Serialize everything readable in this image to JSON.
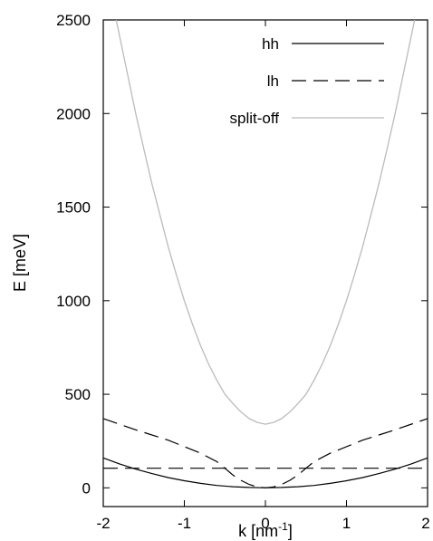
{
  "chart_data": {
    "type": "line",
    "title": "",
    "xlabel": "k [nm",
    "xlabel_sup": "-1",
    "xlabel_end": "]",
    "ylabel": "E [meV]",
    "xlim": [
      -2,
      2
    ],
    "ylim": [
      -100,
      2500
    ],
    "xticks": [
      -2,
      -1,
      0,
      1,
      2
    ],
    "yticks": [
      0,
      500,
      1000,
      1500,
      2000,
      2500
    ],
    "grid": false,
    "legend_position": "top-right",
    "series": [
      {
        "name": "hh",
        "style": "solid",
        "color": "#000000",
        "points": [
          [
            -2.0,
            0
          ],
          [
            -1.8,
            0
          ],
          [
            -1.6,
            0
          ],
          [
            -1.4,
            0
          ],
          [
            -1.2,
            0
          ],
          [
            -1.0,
            0
          ],
          [
            -0.8,
            0
          ],
          [
            -0.6,
            0
          ],
          [
            -0.4,
            0
          ],
          [
            -0.2,
            0
          ],
          [
            0.0,
            0
          ],
          [
            0.2,
            0
          ],
          [
            0.4,
            0
          ],
          [
            0.6,
            0
          ],
          [
            0.8,
            0
          ],
          [
            1.0,
            0
          ],
          [
            1.2,
            0
          ],
          [
            1.4,
            0
          ],
          [
            1.6,
            0
          ],
          [
            1.8,
            0
          ],
          [
            2.0,
            0
          ]
        ],
        "values": [
          160,
          128,
          100,
          76,
          55,
          38,
          24,
          13,
          6,
          2,
          0,
          2,
          6,
          13,
          24,
          38,
          55,
          76,
          100,
          128,
          160
        ]
      },
      {
        "name": "hh",
        "style": "dashed",
        "color": "#000000",
        "x": [
          -2.0,
          2.0
        ],
        "values": [
          105,
          105
        ]
      },
      {
        "name": "lh",
        "style": "dashed",
        "color": "#000000",
        "x": [
          -2.0,
          -1.6,
          -1.2,
          -0.8,
          -0.6,
          -0.5,
          -0.4,
          -0.3,
          -0.2,
          -0.1,
          0.0,
          0.1,
          0.2,
          0.3,
          0.4,
          0.5,
          0.6,
          0.8,
          1.2,
          1.6,
          2.0
        ],
        "values": [
          370,
          310,
          255,
          185,
          140,
          105,
          68,
          40,
          18,
          5,
          0,
          5,
          18,
          40,
          68,
          105,
          140,
          185,
          255,
          310,
          370
        ]
      },
      {
        "name": "split-off",
        "style": "solid",
        "color": "#bbbbbb",
        "x": [
          -1.84,
          -1.7,
          -1.6,
          -1.5,
          -1.4,
          -1.3,
          -1.2,
          -1.1,
          -1.0,
          -0.9,
          -0.8,
          -0.7,
          -0.6,
          -0.5,
          -0.4,
          -0.3,
          -0.2,
          -0.1,
          0.0,
          0.1,
          0.2,
          0.3,
          0.4,
          0.5,
          0.6,
          0.7,
          0.8,
          0.9,
          1.0,
          1.1,
          1.2,
          1.3,
          1.4,
          1.5,
          1.6,
          1.7,
          1.84
        ],
        "values": [
          2500,
          2210,
          2000,
          1810,
          1625,
          1455,
          1290,
          1140,
          1000,
          875,
          760,
          660,
          575,
          500,
          450,
          405,
          370,
          350,
          340,
          350,
          370,
          405,
          450,
          500,
          575,
          660,
          760,
          875,
          1000,
          1140,
          1290,
          1455,
          1625,
          1810,
          2000,
          2210,
          2500
        ]
      }
    ],
    "legend": [
      {
        "name": "hh",
        "style": "solid",
        "color": "#000000"
      },
      {
        "name": "lh",
        "style": "dashed",
        "color": "#000000"
      },
      {
        "name": "split-off",
        "style": "solid",
        "color": "#bbbbbb"
      }
    ]
  }
}
